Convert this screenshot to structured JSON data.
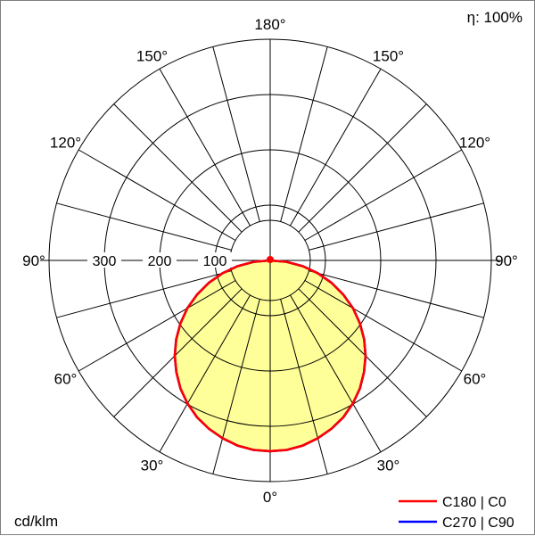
{
  "labels": {
    "efficiency": "η: 100%",
    "unit": "cd/klm"
  },
  "legend": [
    {
      "label": "C180 | C0",
      "color": "#ff0000"
    },
    {
      "label": "C270 | C90",
      "color": "#0000ff"
    }
  ],
  "chart_data": {
    "type": "polar",
    "subtype": "luminous-intensity-distribution",
    "unit": "cd/klm",
    "efficiency_label": "η: 100%",
    "efficiency_percent": 100,
    "angle_ticks_deg": [
      0,
      30,
      60,
      90,
      120,
      150,
      180
    ],
    "angle_tick_labels": [
      "0°",
      "30°",
      "60°",
      "90°",
      "120°",
      "150°",
      "180°"
    ],
    "angle_grid_step_deg": 15,
    "radial_tick_values": [
      100,
      200,
      300
    ],
    "radial_tick_labels": [
      "100",
      "200",
      "300"
    ],
    "radial_circles": [
      100,
      200,
      300,
      400
    ],
    "radial_max": 400,
    "grid_color": "#000000",
    "fill_color": "#ffff99",
    "curves": [
      {
        "name": "C180 | C0",
        "color": "#ff0000",
        "symmetric": true,
        "gamma_deg": [
          0,
          5,
          10,
          15,
          20,
          25,
          30,
          35,
          40,
          45,
          50,
          55,
          60,
          65,
          70,
          75,
          80,
          85,
          90
        ],
        "values": [
          345,
          344,
          340,
          333,
          324,
          313,
          299,
          283,
          264,
          244,
          222,
          198,
          173,
          146,
          118,
          89,
          60,
          30,
          0
        ]
      },
      {
        "name": "C270 | C90",
        "color": "#0000ff",
        "symmetric": true,
        "gamma_deg": [
          0,
          5,
          10,
          15,
          20,
          25,
          30,
          35,
          40,
          45,
          50,
          55,
          60,
          65,
          70,
          75,
          80,
          85,
          90
        ],
        "values": [
          345,
          344,
          340,
          333,
          324,
          313,
          299,
          283,
          264,
          244,
          222,
          198,
          173,
          146,
          118,
          89,
          60,
          30,
          0
        ]
      }
    ]
  }
}
